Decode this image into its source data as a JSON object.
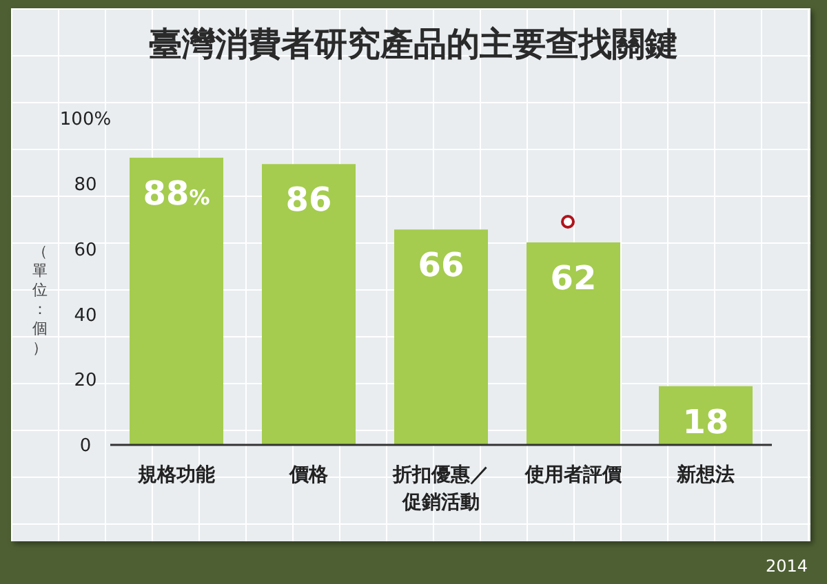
{
  "chart_data": {
    "type": "bar",
    "title": "臺灣消費者研究產品的主要查找關鍵",
    "ylabel": "（單位：個）",
    "categories": [
      "規格功能",
      "價格",
      "折扣優惠／促銷活動",
      "使用者評價",
      "新想法"
    ],
    "values": [
      88,
      86,
      66,
      62,
      18
    ],
    "color": "#a5cc4e",
    "value_labels": [
      "88%",
      "86",
      "66",
      "62",
      "18"
    ],
    "ylim": [
      0,
      100
    ],
    "yticks": [
      0,
      20,
      40,
      60,
      80,
      {
        "value": 100,
        "label": "100%"
      }
    ],
    "grid": false,
    "annotations": [
      "2014"
    ]
  }
}
